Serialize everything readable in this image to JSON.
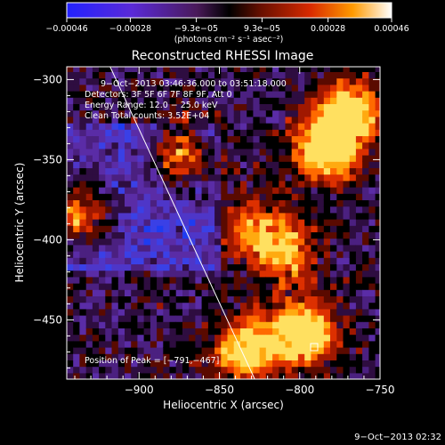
{
  "colorbar": {
    "tick_labels": [
      "−0.00046",
      "−0.00028",
      "−9.3e−05",
      "9.3e−05",
      "0.00028",
      "0.00046"
    ],
    "tick_values": [
      -0.00046,
      -0.00028,
      -9.3e-05,
      9.3e-05,
      0.00028,
      0.00046
    ],
    "range": [
      -0.00046,
      0.00046
    ],
    "units_label": "(photons cm⁻² s⁻¹ asec⁻²)"
  },
  "chart_data": {
    "type": "heatmap",
    "title": "Reconstructed RHESSI Image",
    "xlabel": "Heliocentric X (arcsec)",
    "ylabel": "Heliocentric Y (arcsec)",
    "xlim": [
      -945,
      -750
    ],
    "ylim": [
      -487,
      -292
    ],
    "x_ticks": [
      -900,
      -850,
      -800,
      -750
    ],
    "x_tick_labels": [
      "−900",
      "−850",
      "−800",
      "−750"
    ],
    "y_ticks": [
      -300,
      -350,
      -400,
      -450
    ],
    "y_tick_labels": [
      "−300",
      "−350",
      "−400",
      "−450"
    ],
    "limb_line": {
      "x": [
        -918,
        -828
      ],
      "y": [
        -292,
        -487
      ]
    },
    "annotations": [
      "9−Oct−2013 03:46:36.000 to 03:51:18.000",
      "Detectors: 3F 5F 6F 7F 8F 9F, Att 0",
      "Energy Range: 12.0 − 25.0 keV",
      "Clean    Total counts: 3.52E+04"
    ],
    "peak_label": "Position of Peak = [−791,−467]",
    "peak": {
      "x": -791,
      "y": -467
    },
    "bright_regions": [
      {
        "x": -785,
        "y": -345,
        "intensity": 1.0
      },
      {
        "x": -770,
        "y": -320,
        "intensity": 0.8
      },
      {
        "x": -800,
        "y": -460,
        "intensity": 0.9
      },
      {
        "x": -875,
        "y": -348,
        "intensity": 0.7
      },
      {
        "x": -940,
        "y": -385,
        "intensity": 0.75
      },
      {
        "x": -835,
        "y": -470,
        "intensity": 0.85
      },
      {
        "x": -830,
        "y": -395,
        "intensity": 0.5
      },
      {
        "x": -810,
        "y": -410,
        "intensity": 0.55
      }
    ]
  },
  "footer": {
    "timestamp": "9−Oct−2013 02:32"
  }
}
